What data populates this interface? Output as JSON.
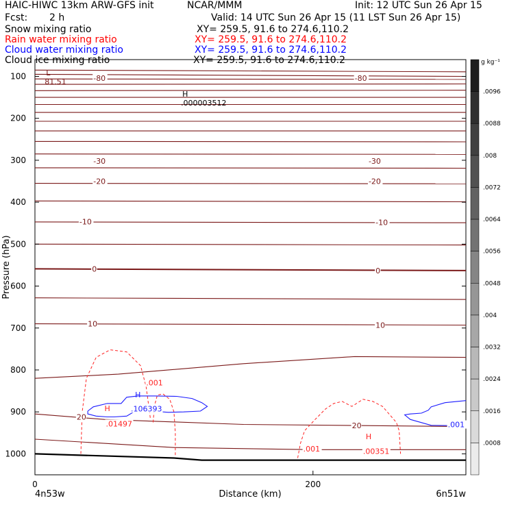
{
  "header": {
    "model": "HAIC-HIWC 13km ARW-GFS init",
    "org": "NCAR/MMM",
    "init": "Init: 12 UTC Sun 26 Apr 15",
    "fcst_label": "Fcst:",
    "fcst_value": "2 h",
    "valid": "Valid: 14 UTC Sun 26 Apr 15 (11 LST Sun 26 Apr 15)"
  },
  "fields": [
    {
      "name": "Snow mixing ratio",
      "xy": "XY= 259.5, 91.6 to 274.6,110.2",
      "color": "#000000"
    },
    {
      "name": "Rain water mixing ratio",
      "xy": "XY= 259.5, 91.6 to 274.6,110.2",
      "color": "#ff0000"
    },
    {
      "name": "Cloud water mixing ratio",
      "xy": "XY= 259.5, 91.6 to 274.6,110.2",
      "color": "#0000ff"
    },
    {
      "name": "Cloud ice mixing ratio",
      "xy": "XY= 259.5, 91.6 to 274.6,110.2",
      "color": "#000000"
    }
  ],
  "colors": {
    "temperature": "#7a1818",
    "rain": "#ff2222",
    "cloud": "#1a1aff",
    "ground": "#000000"
  },
  "chart_data": {
    "type": "line",
    "ylabel": "Pressure (hPa)",
    "xlabel": "Distance (km)",
    "x_start_label": "4n53w",
    "x_end_label": "6n51w",
    "xlim": [
      0,
      310
    ],
    "ylim": [
      1050,
      60
    ],
    "x_ticks": [
      0,
      200
    ],
    "y_ticks": [
      100,
      200,
      300,
      400,
      500,
      600,
      700,
      800,
      900,
      1000
    ],
    "isotherms": [
      [
        [
          0,
          1000
        ],
        [
          100,
          1010
        ],
        [
          120,
          1015
        ],
        [
          310,
          1015
        ]
      ],
      [
        [
          0,
          965
        ],
        [
          100,
          985
        ],
        [
          200,
          990
        ],
        [
          310,
          990
        ]
      ],
      [
        [
          0,
          905
        ],
        [
          50,
          918
        ],
        [
          150,
          930
        ],
        [
          310,
          935
        ]
      ],
      [
        [
          0,
          820
        ],
        [
          60,
          810
        ],
        [
          150,
          785
        ],
        [
          230,
          768
        ],
        [
          310,
          770
        ]
      ],
      [
        [
          0,
          690
        ],
        [
          310,
          693
        ]
      ],
      [
        [
          0,
          628
        ],
        [
          310,
          632
        ]
      ],
      [
        [
          0,
          559
        ],
        [
          310,
          563
        ]
      ],
      [
        [
          0,
          500
        ],
        [
          310,
          502
        ]
      ],
      [
        [
          0,
          447
        ],
        [
          310,
          449
        ]
      ],
      [
        [
          0,
          397
        ],
        [
          310,
          399
        ]
      ],
      [
        [
          0,
          355
        ],
        [
          310,
          356
        ]
      ],
      [
        [
          0,
          318
        ],
        [
          310,
          319
        ]
      ],
      [
        [
          0,
          285
        ],
        [
          310,
          286
        ]
      ],
      [
        [
          0,
          255
        ],
        [
          310,
          256
        ]
      ],
      [
        [
          0,
          230
        ],
        [
          310,
          230
        ]
      ],
      [
        [
          0,
          207
        ],
        [
          310,
          207
        ]
      ],
      [
        [
          0,
          186
        ],
        [
          310,
          186
        ]
      ],
      [
        [
          0,
          167
        ],
        [
          310,
          167
        ]
      ],
      [
        [
          0,
          150
        ],
        [
          310,
          150
        ]
      ],
      [
        [
          0,
          134
        ],
        [
          310,
          133
        ]
      ],
      [
        [
          0,
          119
        ],
        [
          310,
          118
        ]
      ],
      [
        [
          0,
          106
        ],
        [
          310,
          107
        ]
      ],
      [
        [
          0,
          95
        ],
        [
          310,
          100
        ]
      ],
      [
        [
          0,
          85
        ],
        [
          310,
          89
        ]
      ]
    ],
    "isotherm_labels": [
      {
        "text": "-80",
        "x": 42,
        "p": 104
      },
      {
        "text": "-80",
        "x": 230,
        "p": 104
      },
      {
        "text": "-30",
        "x": 42,
        "p": 302
      },
      {
        "text": "-30",
        "x": 240,
        "p": 302
      },
      {
        "text": "-20",
        "x": 42,
        "p": 350
      },
      {
        "text": "-20",
        "x": 240,
        "p": 350
      },
      {
        "text": "-10",
        "x": 32,
        "p": 446
      },
      {
        "text": "-10",
        "x": 245,
        "p": 448
      },
      {
        "text": "0",
        "x": 41,
        "p": 559
      },
      {
        "text": "0",
        "x": 245,
        "p": 563
      },
      {
        "text": "10",
        "x": 38,
        "p": 690
      },
      {
        "text": "10",
        "x": 245,
        "p": 693
      },
      {
        "text": "20",
        "x": 30,
        "p": 912
      },
      {
        "text": "20",
        "x": 228,
        "p": 932
      }
    ],
    "rain_contours": [
      [
        [
          33,
          1000
        ],
        [
          34,
          900
        ],
        [
          37,
          820
        ],
        [
          44,
          770
        ],
        [
          54,
          752
        ],
        [
          66,
          757
        ],
        [
          76,
          790
        ],
        [
          80,
          840
        ],
        [
          82,
          890
        ],
        [
          83,
          915
        ]
      ],
      [
        [
          85,
          925
        ],
        [
          86,
          885
        ],
        [
          88,
          860
        ],
        [
          92,
          857
        ],
        [
          97,
          870
        ],
        [
          100,
          900
        ],
        [
          101,
          950
        ],
        [
          101,
          1005
        ]
      ],
      [
        [
          189,
          1010
        ],
        [
          191,
          975
        ],
        [
          194,
          945
        ],
        [
          201,
          920
        ],
        [
          209,
          893
        ],
        [
          215,
          880
        ],
        [
          221,
          875
        ],
        [
          228,
          887
        ],
        [
          236,
          870
        ],
        [
          243,
          875
        ],
        [
          250,
          887
        ],
        [
          260,
          925
        ],
        [
          262,
          945
        ],
        [
          263,
          1000
        ]
      ]
    ],
    "rain_labels": [
      {
        "text": ".001",
        "x": 80,
        "p": 830
      },
      {
        "text": ".001",
        "x": 193,
        "p": 988
      },
      {
        "text": ".01497",
        "x": 51,
        "p": 928
      },
      {
        "text": ".00351",
        "x": 236,
        "p": 994
      }
    ],
    "cloud_contours": [
      [
        [
          38,
          898
        ],
        [
          42,
          888
        ],
        [
          52,
          880
        ],
        [
          62,
          880
        ],
        [
          66,
          865
        ],
        [
          74,
          862
        ],
        [
          86,
          862
        ],
        [
          102,
          863
        ],
        [
          113,
          868
        ],
        [
          120,
          878
        ],
        [
          124,
          887
        ],
        [
          119,
          898
        ],
        [
          107,
          900
        ],
        [
          96,
          901
        ],
        [
          84,
          898
        ],
        [
          72,
          898
        ],
        [
          66,
          910
        ],
        [
          57,
          912
        ],
        [
          52,
          912
        ],
        [
          44,
          910
        ],
        [
          38,
          905
        ],
        [
          38,
          898
        ]
      ],
      [
        [
          310,
          873
        ],
        [
          295,
          878
        ],
        [
          285,
          888
        ],
        [
          283,
          896
        ],
        [
          278,
          903
        ],
        [
          270,
          905
        ],
        [
          266,
          907
        ],
        [
          270,
          918
        ],
        [
          285,
          932
        ],
        [
          310,
          933
        ]
      ]
    ],
    "cloud_labels": [
      {
        "text": ".106393",
        "x": 69,
        "p": 892
      },
      {
        "text": ".001",
        "x": 297,
        "p": 930
      }
    ],
    "extrema": [
      {
        "kind": "L",
        "value": "81.51",
        "x": 8,
        "p": 107,
        "color": "#7a1818"
      },
      {
        "kind": "H",
        "value": ".000003512",
        "x": 106,
        "p": 158,
        "color": "#000000"
      },
      {
        "kind": "H",
        "value": "",
        "x": 72,
        "p": 875,
        "color": "#1a1aff"
      },
      {
        "kind": "H",
        "value": "",
        "x": 50,
        "p": 908,
        "color": "#ff2222"
      },
      {
        "kind": "H",
        "value": "",
        "x": 238,
        "p": 975,
        "color": "#ff2222"
      }
    ],
    "colorbar": {
      "unit": "g kg⁻¹",
      "levels": [
        ".0096",
        ".0088",
        ".008",
        ".0072",
        ".0064",
        ".0056",
        ".0048",
        ".004",
        ".0032",
        ".0024",
        ".0016",
        ".0008"
      ]
    }
  }
}
